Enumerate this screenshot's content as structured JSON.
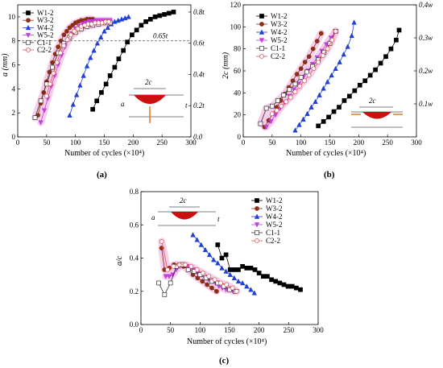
{
  "markers": {
    "W1-2": {
      "shape": "square-filled",
      "color": "#000000"
    },
    "W3-2": {
      "shape": "circle-filled",
      "color": "#8B2E16"
    },
    "W4-2": {
      "shape": "triangle-up",
      "color": "#1F3FD6"
    },
    "W5-2": {
      "shape": "triangle-down",
      "color": "#C040E0"
    },
    "C1-1": {
      "shape": "square-open",
      "color": "#333333"
    },
    "C2-2": {
      "shape": "circle-open",
      "color": "#E05050"
    }
  },
  "highlight_color": "#F4C8E6",
  "crack_color": "#CC1010",
  "arrow_color": "#E07820",
  "chart_data": [
    {
      "type": "scatter",
      "panel_label": "(a)",
      "xlabel": "Number of cycles (×10⁴)",
      "ylabel": "a (mm)",
      "y2_ticks": [
        "0.0",
        "0.2t",
        "0.4t",
        "0.6t",
        "0.8t"
      ],
      "xlim": [
        0,
        300
      ],
      "ylim": [
        0,
        11
      ],
      "x_ticks": [
        "0",
        "50",
        "100",
        "150",
        "200",
        "250",
        "300"
      ],
      "y_ticks": [
        "0",
        "2",
        "4",
        "6",
        "8",
        "10"
      ],
      "reference_line": {
        "y": 8.0,
        "label": "0.65t"
      },
      "inset_label": "2c",
      "inset_dim_a": "a",
      "inset_dim_t": "t",
      "series": [
        {
          "name": "W1-2",
          "x": [
            130,
            137,
            145,
            153,
            160,
            168,
            175,
            183,
            190,
            198,
            206,
            214,
            222,
            230,
            238,
            246,
            254,
            262,
            270
          ],
          "y": [
            2.3,
            3.0,
            3.7,
            4.4,
            5.1,
            5.8,
            6.5,
            7.2,
            7.9,
            8.5,
            8.9,
            9.3,
            9.6,
            9.8,
            10.0,
            10.1,
            10.2,
            10.3,
            10.4
          ]
        },
        {
          "name": "W3-2",
          "x": [
            35,
            40,
            45,
            50,
            55,
            60,
            65,
            70,
            75,
            80,
            85,
            90,
            95,
            100,
            105,
            110,
            115,
            120,
            125,
            130
          ],
          "y": [
            1.8,
            2.8,
            3.7,
            4.6,
            5.4,
            6.2,
            6.9,
            7.5,
            8.0,
            8.5,
            8.8,
            9.1,
            9.3,
            9.5,
            9.6,
            9.7,
            9.7,
            9.8,
            9.8,
            9.8
          ]
        },
        {
          "name": "W4-2",
          "x": [
            90,
            96,
            102,
            108,
            114,
            120,
            126,
            132,
            138,
            144,
            150,
            156,
            162,
            168,
            174,
            180,
            186,
            192
          ],
          "y": [
            1.8,
            2.7,
            3.5,
            4.3,
            5.1,
            5.9,
            6.6,
            7.2,
            7.8,
            8.3,
            8.8,
            9.1,
            9.4,
            9.6,
            9.7,
            9.8,
            9.9,
            10.0
          ]
        },
        {
          "name": "W5-2",
          "x": [
            40,
            46,
            52,
            58,
            64,
            70,
            76,
            82,
            88,
            94,
            100,
            106,
            112,
            118,
            124,
            130,
            136,
            142,
            148,
            154,
            160
          ],
          "y": [
            1.2,
            2.2,
            3.2,
            4.2,
            5.1,
            6.0,
            6.8,
            7.5,
            8.1,
            8.6,
            9.0,
            9.2,
            9.4,
            9.5,
            9.6,
            9.6,
            9.7,
            9.7,
            9.7,
            9.7,
            9.7
          ]
        },
        {
          "name": "C1-1",
          "x": [
            30,
            40,
            50,
            60,
            70,
            80,
            90,
            100,
            110,
            120,
            130,
            140,
            150,
            160
          ],
          "y": [
            1.6,
            3.0,
            4.4,
            5.8,
            7.0,
            7.8,
            8.3,
            8.7,
            9.0,
            9.2,
            9.3,
            9.4,
            9.5,
            9.5
          ]
        },
        {
          "name": "C2-2",
          "x": [
            50,
            56,
            62,
            68,
            74,
            80,
            86,
            92,
            98,
            104,
            110,
            116,
            122,
            128,
            134,
            140,
            146,
            152,
            158
          ],
          "y": [
            3.4,
            4.4,
            5.3,
            6.2,
            7.0,
            7.6,
            8.1,
            8.5,
            8.8,
            9.0,
            9.2,
            9.3,
            9.4,
            9.4,
            9.5,
            9.5,
            9.5,
            9.6,
            9.6
          ]
        }
      ]
    },
    {
      "type": "scatter",
      "panel_label": "(b)",
      "xlabel": "Number of cycles (×10⁴)",
      "ylabel": "2c (mm)",
      "y2_ticks": [
        "0.1w",
        "0.2w",
        "0.3w",
        "0.4w"
      ],
      "xlim": [
        0,
        300
      ],
      "ylim": [
        0,
        120
      ],
      "x_ticks": [
        "0",
        "50",
        "100",
        "150",
        "200",
        "250",
        "300"
      ],
      "y_ticks": [
        "0",
        "20",
        "40",
        "60",
        "80",
        "100",
        "120"
      ],
      "inset_label": "2c",
      "series": [
        {
          "name": "W1-2",
          "x": [
            130,
            139,
            148,
            157,
            166,
            175,
            184,
            193,
            202,
            211,
            220,
            229,
            238,
            247,
            256,
            265,
            270
          ],
          "y": [
            10,
            14,
            18,
            23,
            27,
            33,
            37,
            42,
            47,
            51,
            56,
            61,
            67,
            73,
            80,
            88,
            97
          ]
        },
        {
          "name": "W3-2",
          "x": [
            37,
            44,
            51,
            58,
            65,
            72,
            79,
            86,
            93,
            100,
            107,
            114,
            121,
            128,
            135
          ],
          "y": [
            9,
            15,
            21,
            27,
            33,
            39,
            45,
            51,
            57,
            62,
            68,
            73,
            80,
            87,
            94
          ]
        },
        {
          "name": "W4-2",
          "x": [
            90,
            97,
            104,
            111,
            118,
            125,
            132,
            139,
            146,
            153,
            160,
            167,
            174,
            181,
            188,
            192
          ],
          "y": [
            6,
            11,
            16,
            21,
            27,
            32,
            38,
            44,
            50,
            56,
            62,
            68,
            75,
            82,
            92,
            104
          ]
        },
        {
          "name": "W5-2",
          "x": [
            40,
            48,
            56,
            64,
            72,
            80,
            88,
            96,
            104,
            112,
            120,
            128,
            136,
            144,
            152,
            160
          ],
          "y": [
            9,
            14,
            20,
            26,
            31,
            37,
            43,
            48,
            54,
            60,
            66,
            72,
            78,
            84,
            90,
            96
          ]
        },
        {
          "name": "C1-1",
          "x": [
            30,
            40,
            50,
            60,
            70,
            80,
            90,
            100,
            110,
            120,
            130,
            140,
            150,
            160
          ],
          "y": [
            12,
            26,
            28,
            33,
            38,
            43,
            48,
            54,
            59,
            64,
            70,
            77,
            85,
            96
          ]
        },
        {
          "name": "C2-2",
          "x": [
            50,
            58,
            66,
            74,
            82,
            90,
            98,
            106,
            114,
            122,
            130,
            138,
            146,
            154,
            160
          ],
          "y": [
            21,
            24,
            28,
            32,
            36,
            41,
            46,
            51,
            56,
            62,
            68,
            74,
            80,
            88,
            96
          ]
        }
      ]
    },
    {
      "type": "scatter",
      "panel_label": "(c)",
      "xlabel": "Number of cycles (×10⁴)",
      "ylabel": "a/c",
      "xlim": [
        0,
        300
      ],
      "ylim": [
        0.0,
        0.8
      ],
      "x_ticks": [
        "0",
        "50",
        "100",
        "150",
        "200",
        "250",
        "300"
      ],
      "y_ticks": [
        "0.0",
        "0.2",
        "0.4",
        "0.6",
        "0.8"
      ],
      "inset_label": "2c",
      "inset_dim_a": "a",
      "inset_dim_t": "t",
      "series": [
        {
          "name": "W1-2",
          "x": [
            130,
            137,
            144,
            151,
            158,
            165,
            172,
            179,
            186,
            193,
            200,
            207,
            214,
            221,
            228,
            235,
            242,
            249,
            256,
            263,
            270
          ],
          "y": [
            0.48,
            0.4,
            0.42,
            0.33,
            0.33,
            0.33,
            0.35,
            0.34,
            0.34,
            0.33,
            0.31,
            0.29,
            0.29,
            0.27,
            0.26,
            0.25,
            0.24,
            0.23,
            0.23,
            0.22,
            0.21
          ]
        },
        {
          "name": "W3-2",
          "x": [
            35,
            40,
            48,
            56,
            64,
            72,
            80,
            88,
            96,
            104,
            112,
            120,
            128
          ],
          "y": [
            0.46,
            0.33,
            0.34,
            0.36,
            0.36,
            0.35,
            0.33,
            0.3,
            0.28,
            0.26,
            0.24,
            0.22,
            0.2
          ]
        },
        {
          "name": "W4-2",
          "x": [
            88,
            95,
            102,
            109,
            116,
            123,
            130,
            137,
            144,
            151,
            158,
            165,
            172,
            179,
            186,
            192
          ],
          "y": [
            0.54,
            0.51,
            0.48,
            0.45,
            0.42,
            0.39,
            0.37,
            0.34,
            0.32,
            0.3,
            0.28,
            0.26,
            0.25,
            0.23,
            0.21,
            0.19
          ]
        },
        {
          "name": "W5-2",
          "x": [
            42,
            48,
            54,
            60,
            66,
            72,
            78,
            84,
            90,
            96,
            102,
            108,
            114,
            120,
            126,
            132,
            138,
            144,
            150,
            156,
            162
          ],
          "y": [
            0.29,
            0.29,
            0.3,
            0.33,
            0.35,
            0.36,
            0.35,
            0.34,
            0.33,
            0.31,
            0.3,
            0.28,
            0.27,
            0.26,
            0.25,
            0.23,
            0.22,
            0.21,
            0.21,
            0.2,
            0.2
          ]
        },
        {
          "name": "C1-1",
          "x": [
            30,
            40,
            50,
            60,
            70,
            80,
            90,
            100,
            110,
            120,
            130,
            140,
            150,
            160
          ],
          "y": [
            0.25,
            0.18,
            0.25,
            0.35,
            0.36,
            0.33,
            0.32,
            0.3,
            0.28,
            0.26,
            0.25,
            0.23,
            0.21,
            0.2
          ]
        },
        {
          "name": "C2-2",
          "x": [
            35,
            45,
            55,
            65,
            75,
            85,
            95,
            105,
            115,
            125,
            135,
            145,
            155,
            162
          ],
          "y": [
            0.5,
            0.33,
            0.35,
            0.36,
            0.36,
            0.35,
            0.33,
            0.31,
            0.29,
            0.27,
            0.25,
            0.24,
            0.22,
            0.2
          ]
        }
      ]
    }
  ]
}
